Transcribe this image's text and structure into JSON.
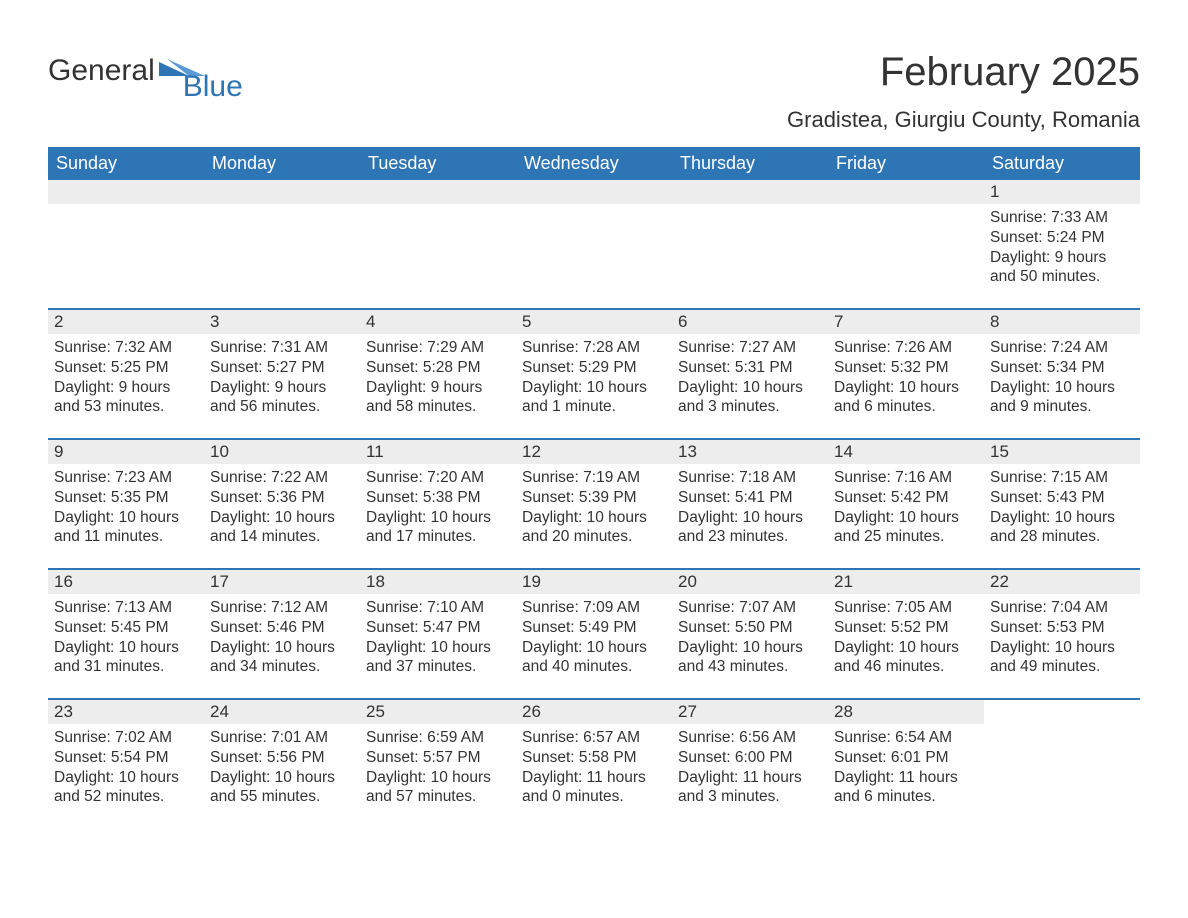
{
  "logo": {
    "general": "General",
    "blue": "Blue",
    "brand_color": "#2e75b6"
  },
  "header": {
    "month_title": "February 2025",
    "location": "Gradistea, Giurgiu County, Romania"
  },
  "colors": {
    "header_bg": "#2e75b6",
    "day_bar_bg": "#ededed",
    "text": "#333333",
    "white": "#ffffff"
  },
  "weekdays": [
    "Sunday",
    "Monday",
    "Tuesday",
    "Wednesday",
    "Thursday",
    "Friday",
    "Saturday"
  ],
  "weeks": [
    [
      {
        "empty": true
      },
      {
        "empty": true
      },
      {
        "empty": true
      },
      {
        "empty": true
      },
      {
        "empty": true
      },
      {
        "empty": true
      },
      {
        "day": "1",
        "sunrise": "Sunrise: 7:33 AM",
        "sunset": "Sunset: 5:24 PM",
        "daylight": "Daylight: 9 hours and 50 minutes."
      }
    ],
    [
      {
        "day": "2",
        "sunrise": "Sunrise: 7:32 AM",
        "sunset": "Sunset: 5:25 PM",
        "daylight": "Daylight: 9 hours and 53 minutes."
      },
      {
        "day": "3",
        "sunrise": "Sunrise: 7:31 AM",
        "sunset": "Sunset: 5:27 PM",
        "daylight": "Daylight: 9 hours and 56 minutes."
      },
      {
        "day": "4",
        "sunrise": "Sunrise: 7:29 AM",
        "sunset": "Sunset: 5:28 PM",
        "daylight": "Daylight: 9 hours and 58 minutes."
      },
      {
        "day": "5",
        "sunrise": "Sunrise: 7:28 AM",
        "sunset": "Sunset: 5:29 PM",
        "daylight": "Daylight: 10 hours and 1 minute."
      },
      {
        "day": "6",
        "sunrise": "Sunrise: 7:27 AM",
        "sunset": "Sunset: 5:31 PM",
        "daylight": "Daylight: 10 hours and 3 minutes."
      },
      {
        "day": "7",
        "sunrise": "Sunrise: 7:26 AM",
        "sunset": "Sunset: 5:32 PM",
        "daylight": "Daylight: 10 hours and 6 minutes."
      },
      {
        "day": "8",
        "sunrise": "Sunrise: 7:24 AM",
        "sunset": "Sunset: 5:34 PM",
        "daylight": "Daylight: 10 hours and 9 minutes."
      }
    ],
    [
      {
        "day": "9",
        "sunrise": "Sunrise: 7:23 AM",
        "sunset": "Sunset: 5:35 PM",
        "daylight": "Daylight: 10 hours and 11 minutes."
      },
      {
        "day": "10",
        "sunrise": "Sunrise: 7:22 AM",
        "sunset": "Sunset: 5:36 PM",
        "daylight": "Daylight: 10 hours and 14 minutes."
      },
      {
        "day": "11",
        "sunrise": "Sunrise: 7:20 AM",
        "sunset": "Sunset: 5:38 PM",
        "daylight": "Daylight: 10 hours and 17 minutes."
      },
      {
        "day": "12",
        "sunrise": "Sunrise: 7:19 AM",
        "sunset": "Sunset: 5:39 PM",
        "daylight": "Daylight: 10 hours and 20 minutes."
      },
      {
        "day": "13",
        "sunrise": "Sunrise: 7:18 AM",
        "sunset": "Sunset: 5:41 PM",
        "daylight": "Daylight: 10 hours and 23 minutes."
      },
      {
        "day": "14",
        "sunrise": "Sunrise: 7:16 AM",
        "sunset": "Sunset: 5:42 PM",
        "daylight": "Daylight: 10 hours and 25 minutes."
      },
      {
        "day": "15",
        "sunrise": "Sunrise: 7:15 AM",
        "sunset": "Sunset: 5:43 PM",
        "daylight": "Daylight: 10 hours and 28 minutes."
      }
    ],
    [
      {
        "day": "16",
        "sunrise": "Sunrise: 7:13 AM",
        "sunset": "Sunset: 5:45 PM",
        "daylight": "Daylight: 10 hours and 31 minutes."
      },
      {
        "day": "17",
        "sunrise": "Sunrise: 7:12 AM",
        "sunset": "Sunset: 5:46 PM",
        "daylight": "Daylight: 10 hours and 34 minutes."
      },
      {
        "day": "18",
        "sunrise": "Sunrise: 7:10 AM",
        "sunset": "Sunset: 5:47 PM",
        "daylight": "Daylight: 10 hours and 37 minutes."
      },
      {
        "day": "19",
        "sunrise": "Sunrise: 7:09 AM",
        "sunset": "Sunset: 5:49 PM",
        "daylight": "Daylight: 10 hours and 40 minutes."
      },
      {
        "day": "20",
        "sunrise": "Sunrise: 7:07 AM",
        "sunset": "Sunset: 5:50 PM",
        "daylight": "Daylight: 10 hours and 43 minutes."
      },
      {
        "day": "21",
        "sunrise": "Sunrise: 7:05 AM",
        "sunset": "Sunset: 5:52 PM",
        "daylight": "Daylight: 10 hours and 46 minutes."
      },
      {
        "day": "22",
        "sunrise": "Sunrise: 7:04 AM",
        "sunset": "Sunset: 5:53 PM",
        "daylight": "Daylight: 10 hours and 49 minutes."
      }
    ],
    [
      {
        "day": "23",
        "sunrise": "Sunrise: 7:02 AM",
        "sunset": "Sunset: 5:54 PM",
        "daylight": "Daylight: 10 hours and 52 minutes."
      },
      {
        "day": "24",
        "sunrise": "Sunrise: 7:01 AM",
        "sunset": "Sunset: 5:56 PM",
        "daylight": "Daylight: 10 hours and 55 minutes."
      },
      {
        "day": "25",
        "sunrise": "Sunrise: 6:59 AM",
        "sunset": "Sunset: 5:57 PM",
        "daylight": "Daylight: 10 hours and 57 minutes."
      },
      {
        "day": "26",
        "sunrise": "Sunrise: 6:57 AM",
        "sunset": "Sunset: 5:58 PM",
        "daylight": "Daylight: 11 hours and 0 minutes."
      },
      {
        "day": "27",
        "sunrise": "Sunrise: 6:56 AM",
        "sunset": "Sunset: 6:00 PM",
        "daylight": "Daylight: 11 hours and 3 minutes."
      },
      {
        "day": "28",
        "sunrise": "Sunrise: 6:54 AM",
        "sunset": "Sunset: 6:01 PM",
        "daylight": "Daylight: 11 hours and 6 minutes."
      },
      {
        "empty": true
      }
    ]
  ]
}
